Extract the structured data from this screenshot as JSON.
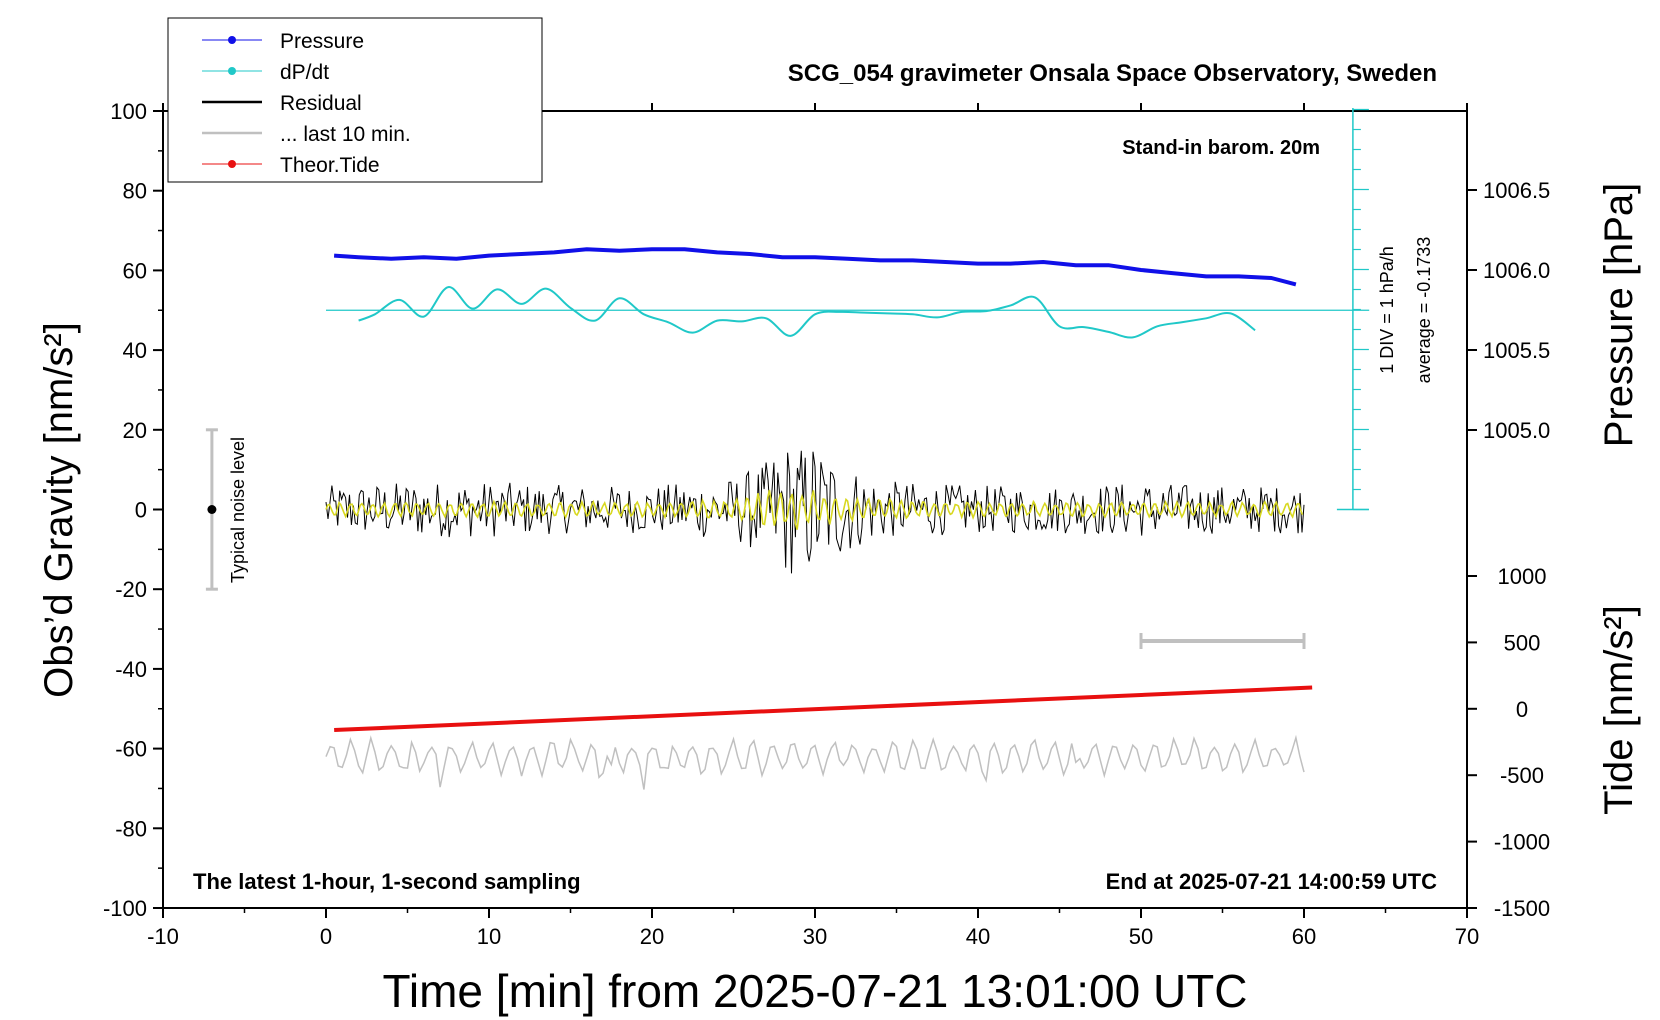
{
  "chart_data": {
    "type": "line",
    "title": "SCG_054 gravimeter Onsala Space Observatory, Sweden",
    "xlabel": "Time [min] from 2025-07-21 13:01:00 UTC",
    "ylabel": "Obs’d Gravity [nm/s²]",
    "y2label_pressure": "Pressure [hPa]",
    "y2label_tide": "Tide [nm/s²]",
    "xlim": [
      -10,
      70
    ],
    "ylim": [
      -100,
      100
    ],
    "x_ticks": [
      -10,
      0,
      10,
      20,
      30,
      40,
      50,
      60,
      70
    ],
    "y_ticks": [
      -100,
      -80,
      -60,
      -40,
      -20,
      0,
      20,
      40,
      60,
      80,
      100
    ],
    "pressure_ticks": [
      "1006.5",
      "1006.0",
      "1005.5",
      "1005.0"
    ],
    "pressure_tick_values": [
      1006.5,
      1006.0,
      1005.5,
      1005.0
    ],
    "tide_ticks": [
      "1000",
      "500",
      "0",
      "-500",
      "-1000",
      "-1500"
    ],
    "tide_tick_values": [
      1000,
      500,
      0,
      -500,
      -1000,
      -1500
    ],
    "legend_placement": "top-left",
    "legend": [
      {
        "name": "Pressure",
        "color": "#1010e8",
        "marker": "dot"
      },
      {
        "name": "dP/dt",
        "color": "#20c8c8",
        "marker": "dot"
      },
      {
        "name": "Residual",
        "color": "#000000",
        "marker": "none"
      },
      {
        "name": "... last 10 min.",
        "color": "#c0c0c0",
        "marker": "none"
      },
      {
        "name": "Theor.Tide",
        "color": "#e81010",
        "marker": "dot"
      }
    ],
    "annotations": {
      "barometer": "Stand-in barom. 20m",
      "div_note": "1 DIV = 1 hPa/h",
      "average_note": "average = -0.1733",
      "noise_label": "Typical noise level",
      "sampling_note": "The latest 1-hour, 1-second sampling",
      "end_note": "End at 2025-07-21 14:00:59 UTC"
    },
    "noise_level": {
      "x": -7,
      "center": 0,
      "low": -20,
      "high": 20
    },
    "last10_bar": {
      "x": [
        50,
        60
      ],
      "y": -33
    },
    "series": [
      {
        "name": "Pressure",
        "color": "#1010e8",
        "axis": "pressure",
        "x": [
          0.5,
          2,
          4,
          6,
          8,
          10,
          12,
          14,
          16,
          18,
          20,
          22,
          24,
          26,
          28,
          30,
          32,
          34,
          36,
          38,
          40,
          42,
          44,
          46,
          48,
          50,
          52,
          54,
          56,
          58,
          59.5
        ],
        "values": [
          1006.09,
          1006.08,
          1006.07,
          1006.08,
          1006.07,
          1006.09,
          1006.1,
          1006.11,
          1006.13,
          1006.12,
          1006.13,
          1006.13,
          1006.11,
          1006.1,
          1006.08,
          1006.08,
          1006.07,
          1006.06,
          1006.06,
          1006.05,
          1006.04,
          1006.04,
          1006.05,
          1006.03,
          1006.03,
          1006.0,
          1005.98,
          1005.96,
          1005.96,
          1005.95,
          1005.91
        ]
      },
      {
        "name": "dP/dt",
        "color": "#20c8c8",
        "axis": "pressure_rate",
        "baseline_gravity": 50,
        "x": [
          2,
          3,
          4.5,
          6,
          7.5,
          9,
          10.5,
          12,
          13.5,
          15,
          16.5,
          18,
          19.5,
          21,
          22.5,
          24,
          25.5,
          27,
          28.5,
          30,
          31.5,
          33,
          34.5,
          36,
          37.5,
          39,
          40.5,
          42,
          43.5,
          45,
          46.5,
          48,
          49.5,
          51,
          52.5,
          54,
          55.5,
          57
        ],
        "values": [
          -0.13,
          -0.05,
          0.13,
          -0.08,
          0.29,
          0.02,
          0.26,
          0.08,
          0.27,
          0.03,
          -0.13,
          0.15,
          -0.05,
          -0.15,
          -0.28,
          -0.13,
          -0.14,
          -0.1,
          -0.32,
          -0.05,
          -0.02,
          -0.03,
          -0.04,
          -0.05,
          -0.09,
          -0.02,
          -0.01,
          0.06,
          0.16,
          -0.2,
          -0.21,
          -0.27,
          -0.34,
          -0.2,
          -0.15,
          -0.1,
          -0.04,
          -0.25
        ]
      },
      {
        "name": "Residual",
        "color": "#000000",
        "axis": "gravity",
        "envelope_x": [
          0,
          5,
          10,
          15,
          20,
          25,
          27,
          28,
          29,
          30,
          31,
          33,
          35,
          40,
          45,
          50,
          55,
          60
        ],
        "envelope_amplitude": [
          6,
          7,
          7,
          6,
          6,
          8,
          12,
          18,
          16,
          18,
          14,
          9,
          7,
          6,
          6,
          7,
          6,
          6
        ]
      },
      {
        "name": "Residual (filtered)",
        "color": "#d8d820",
        "axis": "gravity",
        "envelope_x": [
          0,
          10,
          20,
          25,
          28,
          30,
          32,
          40,
          50,
          60
        ],
        "envelope_amplitude": [
          2,
          2,
          2,
          3,
          6,
          5,
          3,
          2,
          2,
          2
        ]
      },
      {
        "name": "... last 10 min.",
        "color": "#c0c0c0",
        "axis": "gravity",
        "baseline": -62,
        "envelope_amplitude": 5
      },
      {
        "name": "Theor.Tide",
        "color": "#e81010",
        "axis": "tide",
        "x": [
          0.5,
          60.5
        ],
        "values": [
          -160,
          160
        ]
      }
    ]
  }
}
